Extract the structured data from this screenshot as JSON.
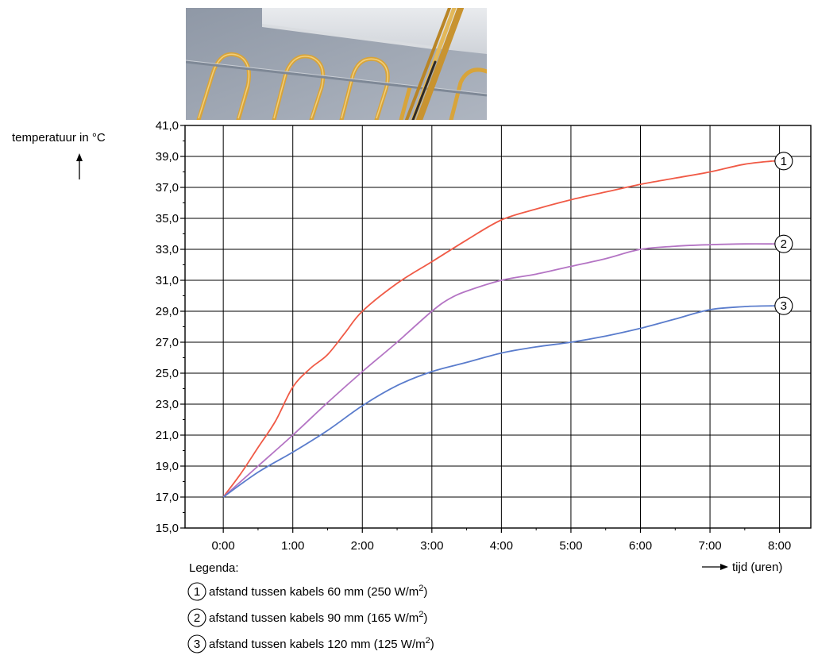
{
  "chart_data": {
    "type": "line",
    "ylabel": "temperatuur in °C",
    "xlabel": "tijd (uren)",
    "x_ticks": [
      "0:00",
      "1:00",
      "2:00",
      "3:00",
      "4:00",
      "5:00",
      "6:00",
      "7:00",
      "8:00"
    ],
    "y_ticks": [
      "15,0",
      "17,0",
      "19,0",
      "21,0",
      "23,0",
      "25,0",
      "27,0",
      "29,0",
      "31,0",
      "33,0",
      "35,0",
      "37,0",
      "39,0",
      "41,0"
    ],
    "xlim": [
      0,
      8
    ],
    "ylim": [
      15,
      41
    ],
    "x_range_drawn": [
      -0.55,
      8.45
    ],
    "grid": true,
    "series": [
      {
        "marker": "1",
        "color": "#f05a46",
        "x": [
          0,
          0.25,
          0.5,
          0.75,
          1.0,
          1.25,
          1.5,
          1.75,
          2.0,
          2.5,
          3.0,
          3.5,
          4.0,
          4.5,
          5.0,
          5.5,
          6.0,
          6.5,
          7.0,
          7.5,
          7.9
        ],
        "y": [
          17.0,
          18.5,
          20.2,
          21.9,
          24.1,
          25.3,
          26.2,
          27.6,
          29.0,
          30.8,
          32.2,
          33.6,
          34.9,
          35.6,
          36.2,
          36.7,
          37.2,
          37.6,
          38.0,
          38.5,
          38.7
        ]
      },
      {
        "marker": "2",
        "color": "#b474c4",
        "x": [
          0,
          0.5,
          1.0,
          1.5,
          2.0,
          2.5,
          3.0,
          3.25,
          3.5,
          4.0,
          4.5,
          5.0,
          5.5,
          6.0,
          6.5,
          7.0,
          7.5,
          7.9
        ],
        "y": [
          17.0,
          19.0,
          21.0,
          23.1,
          25.1,
          27.0,
          29.0,
          29.8,
          30.3,
          31.0,
          31.4,
          31.9,
          32.4,
          33.0,
          33.2,
          33.3,
          33.35,
          33.35
        ]
      },
      {
        "marker": "3",
        "color": "#5a7ccc",
        "x": [
          0,
          0.5,
          1.0,
          1.5,
          2.0,
          2.5,
          3.0,
          3.5,
          4.0,
          4.5,
          5.0,
          5.5,
          6.0,
          6.5,
          7.0,
          7.5,
          7.9
        ],
        "y": [
          17.0,
          18.6,
          19.9,
          21.3,
          22.9,
          24.2,
          25.1,
          25.7,
          26.3,
          26.7,
          27.0,
          27.4,
          27.9,
          28.5,
          29.1,
          29.3,
          29.35
        ]
      }
    ],
    "legend": {
      "title": "Legenda:",
      "entries": [
        {
          "marker": "1",
          "text": "afstand tussen kabels 60 mm (250 W/m",
          "sup": "2",
          "close": ")"
        },
        {
          "marker": "2",
          "text": "afstand tussen kabels 90 mm (165 W/m",
          "sup": "2",
          "close": ")"
        },
        {
          "marker": "3",
          "text": "afstand tussen kabels 120 mm (125 W/m",
          "sup": "2",
          "close": ")"
        }
      ]
    }
  },
  "photo": {
    "description_icon": "floor-heating-cables-photo"
  }
}
